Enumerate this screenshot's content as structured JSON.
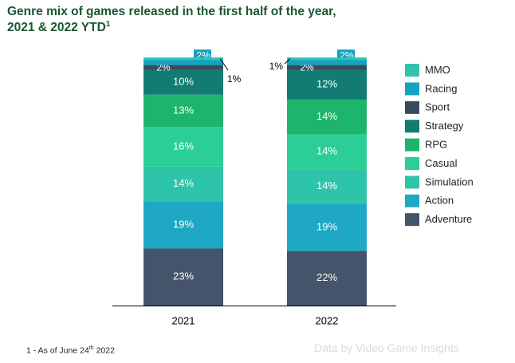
{
  "title": {
    "line1": "Genre mix of games released in the first half of the year,",
    "line2": "2021 & 2022 YTD",
    "sup": "1"
  },
  "footnote": {
    "prefix": "1 - As of June 24",
    "sup": "th",
    "suffix": " 2022"
  },
  "watermark": "Data by Video Game Insights",
  "colors": {
    "title": "#1a5632",
    "axis": "#000000",
    "bar_label": "#ffffff",
    "outside_label": "#000000"
  },
  "chart_data": {
    "type": "bar",
    "stacked": true,
    "categories": [
      "2021",
      "2022"
    ],
    "ylim": [
      0,
      100
    ],
    "legend_position": "right",
    "series": [
      {
        "name": "Adventure",
        "color": "#44546a",
        "values": [
          23,
          22
        ],
        "labels": [
          "23%",
          "22%"
        ]
      },
      {
        "name": "Action",
        "color": "#1fa8c4",
        "values": [
          19,
          19
        ],
        "labels": [
          "19%",
          "19%"
        ]
      },
      {
        "name": "Simulation",
        "color": "#2ec4a9",
        "values": [
          14,
          14
        ],
        "labels": [
          "14%",
          "14%"
        ]
      },
      {
        "name": "Casual",
        "color": "#2bcf96",
        "values": [
          16,
          14
        ],
        "labels": [
          "16%",
          "14%"
        ]
      },
      {
        "name": "RPG",
        "color": "#1db46b",
        "values": [
          13,
          14
        ],
        "labels": [
          "13%",
          "14%"
        ]
      },
      {
        "name": "Strategy",
        "color": "#127c73",
        "values": [
          10,
          12
        ],
        "labels": [
          "10%",
          "12%"
        ]
      },
      {
        "name": "Sport",
        "color": "#3a4a5e",
        "values": [
          2,
          2
        ],
        "labels": [
          "2%",
          "2%"
        ]
      },
      {
        "name": "Racing",
        "color": "#13a3c2",
        "values": [
          2,
          2
        ],
        "labels": [
          "2%",
          "2%"
        ]
      },
      {
        "name": "MMO",
        "color": "#33c3ad",
        "values": [
          1,
          1
        ],
        "labels": [
          "1%",
          "1%"
        ]
      }
    ]
  }
}
